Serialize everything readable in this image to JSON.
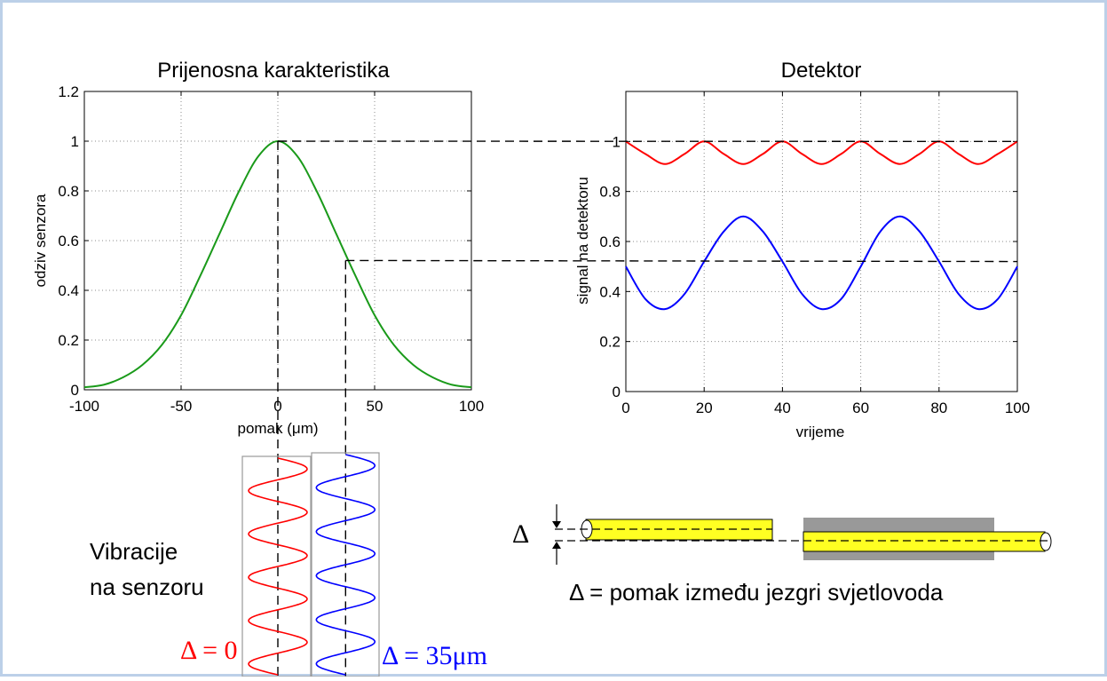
{
  "chart_data": [
    {
      "type": "line",
      "title": "Prijenosna karakteristika",
      "xlabel": "pomak (μm)",
      "ylabel": "odziv senzora",
      "xlim": [
        -100,
        100
      ],
      "ylim": [
        0,
        1.2
      ],
      "xticks": [
        "-100",
        "-50",
        "0",
        "50",
        "100"
      ],
      "yticks": [
        "0",
        "0.2",
        "0.4",
        "0.6",
        "0.8",
        "1",
        "1.2"
      ],
      "grid": true,
      "series": [
        {
          "color": "#1a9a1a",
          "x": [
            -100,
            -90,
            -80,
            -70,
            -60,
            -50,
            -40,
            -30,
            -20,
            -10,
            0,
            10,
            20,
            30,
            40,
            50,
            60,
            70,
            80,
            90,
            100
          ],
          "y": [
            0.01,
            0.02,
            0.05,
            0.1,
            0.18,
            0.3,
            0.46,
            0.63,
            0.8,
            0.94,
            1.0,
            0.94,
            0.8,
            0.63,
            0.46,
            0.3,
            0.18,
            0.1,
            0.05,
            0.02,
            0.01
          ]
        }
      ],
      "guides": [
        {
          "x": 0,
          "y": 1.0
        },
        {
          "x": 35,
          "y": 0.52
        }
      ]
    },
    {
      "type": "line",
      "title": "Detektor",
      "xlabel": "vrijeme",
      "ylabel": "signal na detektoru",
      "xlim": [
        0,
        100
      ],
      "ylim": [
        0,
        1.2
      ],
      "xticks": [
        "0",
        "20",
        "40",
        "60",
        "80",
        "100"
      ],
      "yticks": [
        "0",
        "0.2",
        "0.4",
        "0.6",
        "0.8",
        "1"
      ],
      "grid": true,
      "series": [
        {
          "color": "#ff0000",
          "x": [
            0,
            5,
            10,
            15,
            20,
            25,
            30,
            35,
            40,
            45,
            50,
            55,
            60,
            65,
            70,
            75,
            80,
            85,
            90,
            95,
            100
          ],
          "y": [
            1.0,
            0.95,
            0.91,
            0.95,
            1.0,
            0.95,
            0.91,
            0.95,
            1.0,
            0.95,
            0.91,
            0.95,
            1.0,
            0.95,
            0.91,
            0.95,
            1.0,
            0.95,
            0.91,
            0.95,
            1.0
          ]
        },
        {
          "color": "#0000ff",
          "x": [
            0,
            5,
            10,
            15,
            20,
            25,
            30,
            35,
            40,
            45,
            50,
            55,
            60,
            65,
            70,
            75,
            80,
            85,
            90,
            95,
            100
          ],
          "y": [
            0.5,
            0.37,
            0.33,
            0.39,
            0.52,
            0.64,
            0.7,
            0.64,
            0.52,
            0.39,
            0.33,
            0.37,
            0.5,
            0.64,
            0.7,
            0.64,
            0.52,
            0.39,
            0.33,
            0.37,
            0.5
          ]
        }
      ],
      "guides": [
        {
          "y": 1.0
        },
        {
          "y": 0.52
        }
      ]
    }
  ],
  "vibration": {
    "label_line1": "Vibracije",
    "label_line2": "na senzoru",
    "red_label": "Δ = 0",
    "blue_label": "Δ = 35μm",
    "red_color": "#ff0000",
    "blue_color": "#0000ff"
  },
  "fiber": {
    "delta_symbol": "Δ",
    "caption": "Δ = pomak između jezgri svjetlovoda",
    "fiber_color": "#ffff22",
    "holder_color": "#999999"
  },
  "colors": {
    "border": "#bcd0e8",
    "axis": "#000000",
    "grid": "#8c8c8c"
  }
}
